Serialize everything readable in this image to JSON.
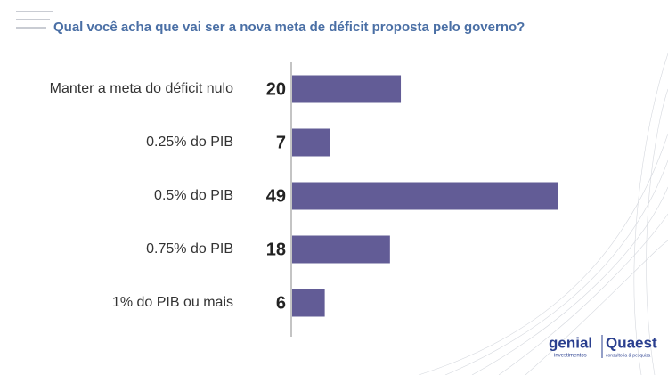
{
  "chart_data": {
    "type": "bar",
    "orientation": "horizontal",
    "title": "Qual você acha que vai ser a nova meta de déficit proposta pelo governo?",
    "categories": [
      "Manter a meta do déficit nulo",
      "0.25% do PIB",
      "0.5% do PIB",
      "0.75% do PIB",
      "1% do PIB ou mais"
    ],
    "values": [
      20,
      7,
      49,
      18,
      6
    ],
    "color": "#625c96"
  },
  "logos": {
    "genial": "genial",
    "genial_sub": "investimentos",
    "quaest": "Quaest",
    "quaest_sub": "consultoria & pesquisa"
  }
}
